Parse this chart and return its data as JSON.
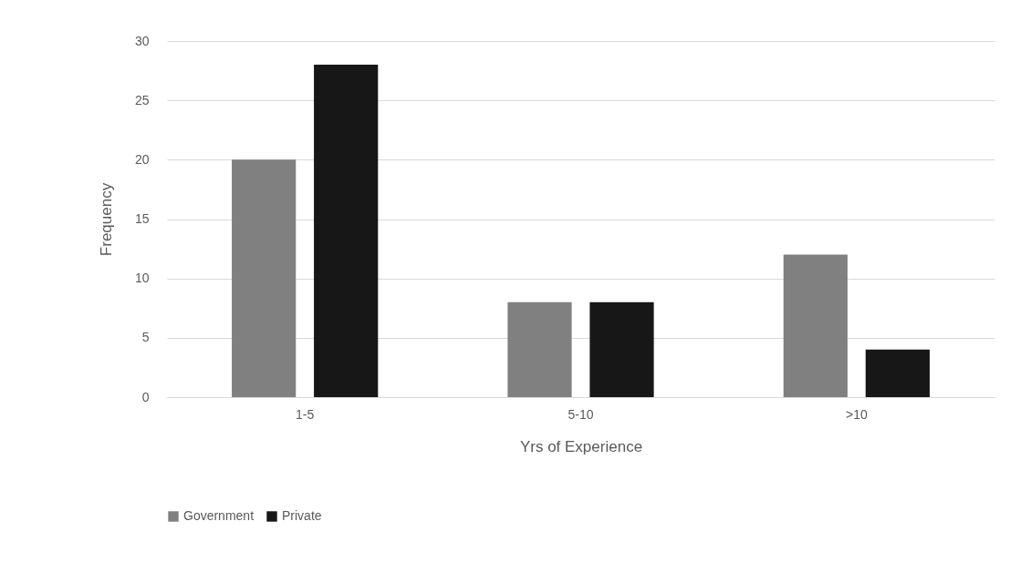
{
  "chart_data": {
    "type": "bar",
    "xlabel": "Yrs of Experience",
    "ylabel": "Frequency",
    "categories": [
      "1-5",
      "5-10",
      ">10"
    ],
    "series": [
      {
        "name": "Government",
        "color": "#808080",
        "values": [
          20,
          8,
          12
        ]
      },
      {
        "name": "Private",
        "color": "#171717",
        "values": [
          28,
          8,
          4
        ]
      }
    ],
    "ylim": [
      0,
      30
    ],
    "yticks": [
      0,
      5,
      10,
      15,
      20,
      25,
      30
    ],
    "grid": "y",
    "legend": "bottom"
  }
}
